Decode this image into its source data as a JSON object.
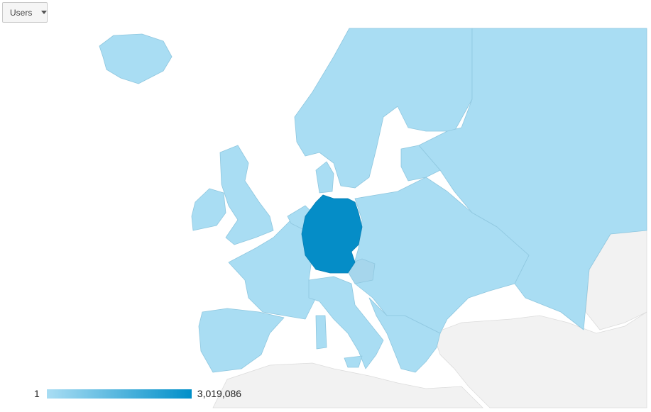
{
  "metric_selector": {
    "label": "Users",
    "icon": "dropdown-arrow-icon"
  },
  "legend": {
    "min": "1",
    "max": "3,019,086",
    "color_min": "#a9ddf3",
    "color_max": "#008fc9"
  },
  "map": {
    "region": "Europe",
    "highlighted_country": "Germany",
    "colors": {
      "data": "#a9ddf3",
      "high": "#058dc7",
      "no_data": "#f2f2f2"
    }
  }
}
